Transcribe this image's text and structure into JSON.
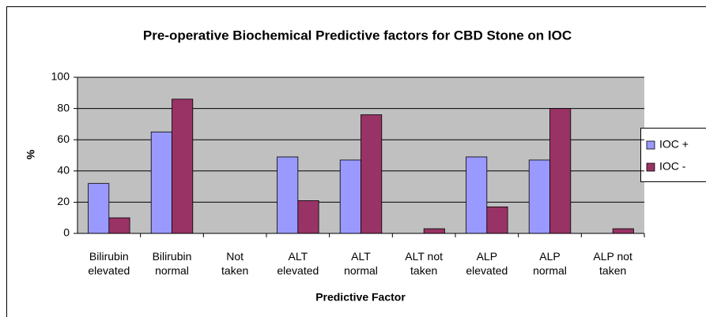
{
  "chart_data": {
    "type": "bar",
    "title": "Pre-operative Biochemical Predictive factors for CBD Stone on IOC",
    "x_label": "Predictive Factor",
    "y_label": "%",
    "categories": [
      "Bilirubin\nelevated",
      "Bilirubin\nnormal",
      "Not\ntaken",
      "ALT\nelevated",
      "ALT\nnormal",
      "ALT not\ntaken",
      "ALP\nelevated",
      "ALP\nnormal",
      "ALP not\ntaken"
    ],
    "series": [
      {
        "name": "IOC +",
        "color": "#9999ff",
        "values": [
          32,
          65,
          0,
          49,
          47,
          0,
          49,
          47,
          0
        ]
      },
      {
        "name": "IOC -",
        "color": "#993366",
        "values": [
          10,
          86,
          0,
          21,
          76,
          3,
          17,
          80,
          3
        ]
      }
    ],
    "ylim": [
      0,
      100
    ],
    "yticks": [
      0,
      20,
      40,
      60,
      80,
      100
    ],
    "grid": true
  }
}
